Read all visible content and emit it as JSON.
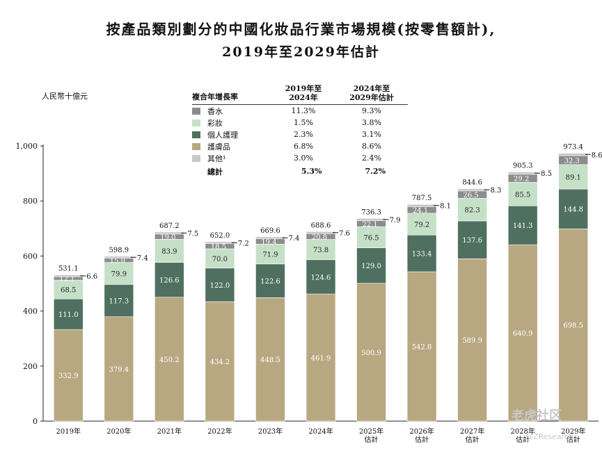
{
  "title_line1": "按產品類別劃分的中國化妝品行業市場規模(按零售額計),",
  "title_line2": "2019年至2029年估計",
  "watermark": "老虎社区",
  "watermark_sub": "@ZResearch",
  "legend": {
    "header": {
      "category": "複合年增長率",
      "period1": "2019年至 2024年",
      "period1_l1": "2019年至",
      "period1_l2": "2024年",
      "period2_l1": "2024年至",
      "period2_l2": "2029年估計"
    },
    "rows": [
      {
        "name": "香水",
        "cagr1": "11.3%",
        "cagr2": "9.3%",
        "color": "#8c8c8c"
      },
      {
        "name": "彩妝",
        "cagr1": "1.5%",
        "cagr2": "3.8%",
        "color": "#c5e0c7"
      },
      {
        "name": "個人護理",
        "cagr1": "2.3%",
        "cagr2": "3.1%",
        "color": "#4f7060"
      },
      {
        "name": "護膚品",
        "cagr1": "6.8%",
        "cagr2": "8.6%",
        "color": "#b8a882"
      },
      {
        "name": "其他¹",
        "cagr1": "3.0%",
        "cagr2": "2.4%",
        "color": "#c8c8c8"
      }
    ],
    "total": {
      "name": "總計",
      "cagr1": "5.3%",
      "cagr2": "7.2%"
    }
  },
  "chart_data": {
    "type": "bar",
    "stacked": true,
    "ylabel": "人民幣十億元",
    "ylim": [
      0,
      1000
    ],
    "yticks": [
      "0",
      "200",
      "400",
      "600",
      "800",
      "1,000"
    ],
    "categories": [
      "2019年",
      "2020年",
      "2021年",
      "2022年",
      "2023年",
      "2024年",
      "2025年 估計",
      "2026年 估計",
      "2027年 估計",
      "2028年 估計",
      "2029年 估計"
    ],
    "series": [
      {
        "name": "護膚品",
        "color": "#b8a882",
        "values": [
          332.9,
          379.4,
          450.2,
          434.2,
          448.5,
          461.9,
          500.9,
          542.8,
          589.9,
          640.9,
          698.5
        ]
      },
      {
        "name": "個人護理",
        "color": "#4f7060",
        "values": [
          111.0,
          117.3,
          126.6,
          122.0,
          122.6,
          124.6,
          129.0,
          133.4,
          137.6,
          141.3,
          144.8
        ]
      },
      {
        "name": "彩妝",
        "color": "#c5e0c7",
        "values": [
          68.5,
          79.9,
          83.9,
          70.0,
          71.9,
          73.8,
          76.5,
          79.2,
          82.3,
          85.5,
          89.1
        ]
      },
      {
        "name": "香水",
        "color": "#8c8c8c",
        "values": [
          12.1,
          15.0,
          19.0,
          18.5,
          19.4,
          20.8,
          22.1,
          24.1,
          26.5,
          29.2,
          32.3
        ]
      },
      {
        "name": "其他¹",
        "color": "#c8c8c8",
        "values": [
          6.6,
          7.4,
          7.5,
          7.2,
          7.4,
          7.6,
          7.9,
          8.1,
          8.3,
          8.5,
          8.6
        ]
      }
    ],
    "totals": [
      531.1,
      598.9,
      687.2,
      652.0,
      669.6,
      688.6,
      736.3,
      787.5,
      844.6,
      905.3,
      973.4
    ]
  }
}
